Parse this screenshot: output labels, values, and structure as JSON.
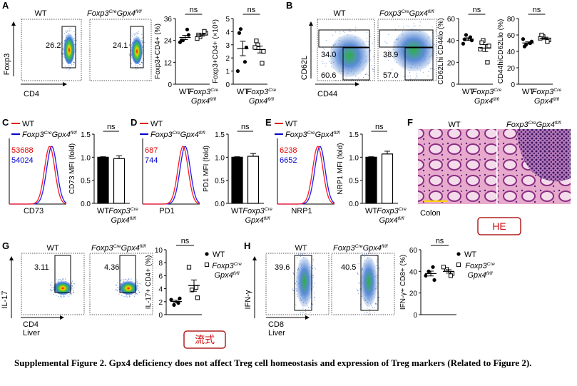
{
  "panels": {
    "A": {
      "letter": "A",
      "flow": {
        "wt_label": "WT",
        "ko_label": "Foxp3CreGpx4fl/fl",
        "y_axis": "Foxp3",
        "x_axis": "CD4",
        "wt_gate": "26.2",
        "ko_gate": "24.1"
      },
      "scatter1": {
        "ylabel": "Foxp3+CD4+ (%)",
        "ticks": [
          "36",
          "24",
          "12",
          "0"
        ],
        "sig": "ns",
        "x": [
          "WT",
          "Foxp3Cre Gpx4fl/fl"
        ]
      },
      "scatter2": {
        "ylabel": "Foxp3+CD4+ (×10⁶)",
        "ticks": [
          "5",
          "4",
          "3",
          "2",
          "1",
          "0"
        ],
        "sig": "ns",
        "x": [
          "WT",
          "Foxp3Cre Gpx4fl/fl"
        ]
      }
    },
    "B": {
      "letter": "B",
      "flow": {
        "wt_label": "WT",
        "ko_label": "Foxp3CreGpx4fl/fl",
        "y_axis": "CD62L",
        "x_axis": "CD44",
        "wt_top": "34.0",
        "wt_bottom": "60.6",
        "ko_top": "38.9",
        "ko_bottom": "57.0"
      },
      "scatter1": {
        "ylabel": "CD62Lhi CD44lo (%)",
        "ticks": [
          "60",
          "40",
          "20",
          "0"
        ],
        "sig": "ns",
        "x": [
          "WT",
          "Foxp3Cre Gpx4fl/fl"
        ]
      },
      "scatter2": {
        "ylabel": "CD44hiCD62Llo (%)",
        "ticks": [
          "80",
          "60",
          "40",
          "20",
          "0"
        ],
        "sig": "ns",
        "x": [
          "WT",
          "Foxp3Cre Gpx4fl/fl"
        ]
      }
    },
    "C": {
      "letter": "C",
      "marker": "CD73",
      "wt_mfi": "53688",
      "ko_mfi": "54024",
      "ylabel": "CD73 MFI (fold)",
      "ticks": [
        "1.5",
        "1.0",
        "0.5",
        "0.0"
      ],
      "sig": "ns",
      "wt_val": 1.0,
      "ko_val": 0.97,
      "x": [
        "WT",
        "Foxp3Cre Gpx4fl/fl"
      ]
    },
    "D": {
      "letter": "D",
      "marker": "PD1",
      "wt_mfi": "687",
      "ko_mfi": "744",
      "ylabel": "PD1 MFI (fold)",
      "ticks": [
        "1.5",
        "1.0",
        "0.5",
        "0.0"
      ],
      "sig": "ns",
      "wt_val": 1.0,
      "ko_val": 1.02,
      "x": [
        "WT",
        "Foxp3Cre Gpx4fl/fl"
      ]
    },
    "E": {
      "letter": "E",
      "marker": "NRP1",
      "wt_mfi": "6238",
      "ko_mfi": "6652",
      "ylabel": "NRP1 MFI (fold)",
      "ticks": [
        "1.5",
        "1.0",
        "0.5",
        "0.0"
      ],
      "sig": "ns",
      "wt_val": 1.0,
      "ko_val": 1.07,
      "x": [
        "WT",
        "Foxp3Cre Gpx4fl/fl"
      ]
    },
    "F": {
      "letter": "F",
      "wt_label": "WT",
      "ko_label": "Foxp3CreGpx4fl/fl",
      "tissue": "Colon",
      "stamp": "HE"
    },
    "G": {
      "letter": "G",
      "wt_label": "WT",
      "ko_label": "Foxp3CreGpx4fl/fl",
      "y_axis": "IL-17",
      "x_axis": "CD4",
      "tissue": "Liver",
      "wt_gate": "3.11",
      "ko_gate": "4.36",
      "ylabel": "IL-17+ CD4+ (%)",
      "ticks": [
        "10",
        "8",
        "6",
        "4",
        "2",
        "0"
      ],
      "sig": "ns",
      "legend": [
        "WT",
        "Foxp3Cre Gpx4fl/fl"
      ],
      "stamp": "流式"
    },
    "H": {
      "letter": "H",
      "wt_label": "WT",
      "ko_label": "Foxp3CreGpx4fl/fl",
      "y_axis": "IFN-γ",
      "x_axis": "CD8",
      "tissue": "Liver",
      "wt_gate": "39.6",
      "ko_gate": "40.5",
      "ylabel": "IFN-γ+ CD8+ (%)",
      "ticks": [
        "60",
        "40",
        "20",
        "0"
      ],
      "sig": "ns",
      "legend": [
        "WT",
        "Foxp3Cre Gpx4fl/fl"
      ]
    }
  },
  "chart_data": [
    {
      "type": "scatter",
      "panel": "A-1",
      "ylabel": "Foxp3+CD4+ (%)",
      "ylim": [
        0,
        36
      ],
      "categories": [
        "WT",
        "Foxp3Cre Gpx4fl/fl"
      ],
      "series": [
        {
          "values": [
            24,
            27,
            23,
            30,
            24
          ]
        },
        {
          "values": [
            26,
            28,
            25,
            29,
            27
          ]
        }
      ]
    },
    {
      "type": "scatter",
      "panel": "A-2",
      "ylabel": "Foxp3+CD4+ (×10⁶)",
      "ylim": [
        0,
        5
      ],
      "categories": [
        "WT",
        "Foxp3Cre Gpx4fl/fl"
      ],
      "series": [
        {
          "values": [
            4.2,
            2.8,
            1.0,
            1.7,
            3.9
          ]
        },
        {
          "values": [
            3.0,
            2.5,
            2.8,
            1.6,
            3.3
          ]
        }
      ]
    },
    {
      "type": "scatter",
      "panel": "B-1",
      "ylabel": "CD62Lhi CD44lo (%)",
      "ylim": [
        0,
        60
      ],
      "categories": [
        "WT",
        "Foxp3Cre Gpx4fl/fl"
      ],
      "series": [
        {
          "values": [
            45,
            40,
            37,
            43,
            41
          ]
        },
        {
          "values": [
            40,
            35,
            32,
            20,
            38
          ]
        }
      ]
    },
    {
      "type": "scatter",
      "panel": "B-2",
      "ylabel": "CD44hiCD62Llo (%)",
      "ylim": [
        0,
        80
      ],
      "categories": [
        "WT",
        "Foxp3Cre Gpx4fl/fl"
      ],
      "series": [
        {
          "values": [
            48,
            52,
            55,
            50,
            46
          ]
        },
        {
          "values": [
            58,
            54,
            56,
            52,
            60
          ]
        }
      ]
    },
    {
      "type": "bar",
      "panel": "C",
      "ylabel": "CD73 MFI (fold)",
      "ylim": [
        0,
        1.5
      ],
      "categories": [
        "WT",
        "Foxp3Cre Gpx4fl/fl"
      ],
      "values": [
        1.0,
        0.97
      ]
    },
    {
      "type": "bar",
      "panel": "D",
      "ylabel": "PD1 MFI (fold)",
      "ylim": [
        0,
        1.5
      ],
      "categories": [
        "WT",
        "Foxp3Cre Gpx4fl/fl"
      ],
      "values": [
        1.0,
        1.02
      ]
    },
    {
      "type": "bar",
      "panel": "E",
      "ylabel": "NRP1 MFI (fold)",
      "ylim": [
        0,
        1.5
      ],
      "categories": [
        "WT",
        "Foxp3Cre Gpx4fl/fl"
      ],
      "values": [
        1.0,
        1.07
      ]
    },
    {
      "type": "scatter",
      "panel": "G",
      "ylabel": "IL-17+ CD4+ (%)",
      "ylim": [
        0,
        10
      ],
      "categories": [
        "WT",
        "Foxp3Cre Gpx4fl/fl"
      ],
      "series": [
        {
          "name": "WT",
          "values": [
            1.5,
            2.5,
            2.3,
            1.8
          ]
        },
        {
          "name": "Foxp3Cre Gpx4fl/fl",
          "values": [
            3.8,
            2.6,
            7.3,
            4.2
          ]
        }
      ]
    },
    {
      "type": "scatter",
      "panel": "H",
      "ylabel": "IFN-γ+ CD8+ (%)",
      "ylim": [
        0,
        60
      ],
      "categories": [
        "WT",
        "Foxp3Cre Gpx4fl/fl"
      ],
      "series": [
        {
          "name": "WT",
          "values": [
            40,
            32,
            36,
            44
          ]
        },
        {
          "name": "Foxp3Cre Gpx4fl/fl",
          "values": [
            42,
            38,
            44,
            36
          ]
        }
      ]
    }
  ],
  "caption": {
    "text": "Supplemental Figure 2. Gpx4 deficiency does not affect Treg cell homeostasis and expression of Treg markers (Related to Figure 2)."
  }
}
